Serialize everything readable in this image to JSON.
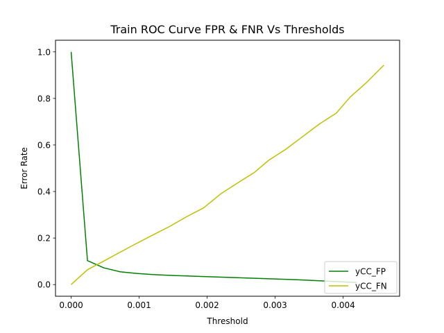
{
  "chart_data": {
    "type": "line",
    "title": "Train ROC Curve FPR & FNR Vs Thresholds",
    "xlabel": "Threshold",
    "ylabel": "Error Rate",
    "xlim": [
      -0.00023,
      0.00483
    ],
    "ylim": [
      -0.05,
      1.05
    ],
    "xticks": [
      0.0,
      0.001,
      0.002,
      0.003,
      0.004
    ],
    "xtick_labels": [
      "0.000",
      "0.001",
      "0.002",
      "0.003",
      "0.004"
    ],
    "yticks": [
      0.0,
      0.2,
      0.4,
      0.6,
      0.8,
      1.0
    ],
    "ytick_labels": [
      "0.0",
      "0.2",
      "0.4",
      "0.6",
      "0.8",
      "1.0"
    ],
    "grid": false,
    "legend_position": "lower-right",
    "series": [
      {
        "name": "yCC_FP",
        "color": "#008000",
        "x": [
          0.0,
          0.00024,
          0.00048,
          0.00072,
          0.00096,
          0.0012,
          0.0015,
          0.0018,
          0.0021,
          0.0024,
          0.0027,
          0.003,
          0.0033,
          0.0036,
          0.0039,
          0.0042
        ],
        "y": [
          1.0,
          0.103,
          0.072,
          0.055,
          0.048,
          0.043,
          0.039,
          0.036,
          0.033,
          0.03,
          0.027,
          0.024,
          0.021,
          0.017,
          0.013,
          0.009
        ]
      },
      {
        "name": "yCC_FN",
        "color": "#bfbf00",
        "x": [
          0.0,
          0.00024,
          0.00048,
          0.0007,
          0.00095,
          0.0012,
          0.00145,
          0.0017,
          0.00195,
          0.0022,
          0.00245,
          0.0027,
          0.0029,
          0.00315,
          0.0034,
          0.00365,
          0.0039,
          0.0041,
          0.00435,
          0.0046
        ],
        "y": [
          0.0,
          0.064,
          0.101,
          0.136,
          0.175,
          0.213,
          0.25,
          0.292,
          0.33,
          0.39,
          0.437,
          0.483,
          0.533,
          0.58,
          0.635,
          0.69,
          0.737,
          0.805,
          0.87,
          0.943
        ]
      }
    ]
  }
}
